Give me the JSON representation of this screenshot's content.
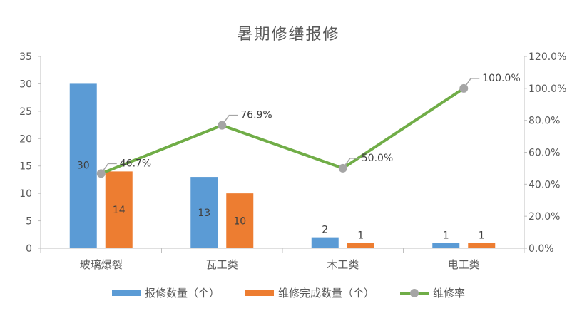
{
  "chart_data": {
    "type": "bar",
    "title": "暑期修缮报修",
    "categories": [
      "玻璃爆裂",
      "瓦工类",
      "木工类",
      "电工类"
    ],
    "series": [
      {
        "name": "报修数量（个）",
        "kind": "bar",
        "axis": "left",
        "color": "#5b9bd5",
        "values": [
          30,
          13,
          2,
          1
        ]
      },
      {
        "name": "维修完成数量（个）",
        "kind": "bar",
        "axis": "left",
        "color": "#ed7d31",
        "values": [
          14,
          10,
          1,
          1
        ]
      },
      {
        "name": "维修率",
        "kind": "line",
        "axis": "right",
        "color": "#70ad47",
        "marker_color": "#a5a5a5",
        "values": [
          46.7,
          76.9,
          50.0,
          100.0
        ],
        "labels": [
          "46.7%",
          "76.9%",
          "50.0%",
          "100.0%"
        ]
      }
    ],
    "ylim_left": [
      0,
      35
    ],
    "yticks_left": [
      "0",
      "5",
      "10",
      "15",
      "20",
      "25",
      "30",
      "35"
    ],
    "ylim_right": [
      0,
      120
    ],
    "yticks_right": [
      "0.0%",
      "20.0%",
      "40.0%",
      "60.0%",
      "80.0%",
      "100.0%",
      "120.0%"
    ],
    "legend_position": "bottom",
    "grid": false
  }
}
